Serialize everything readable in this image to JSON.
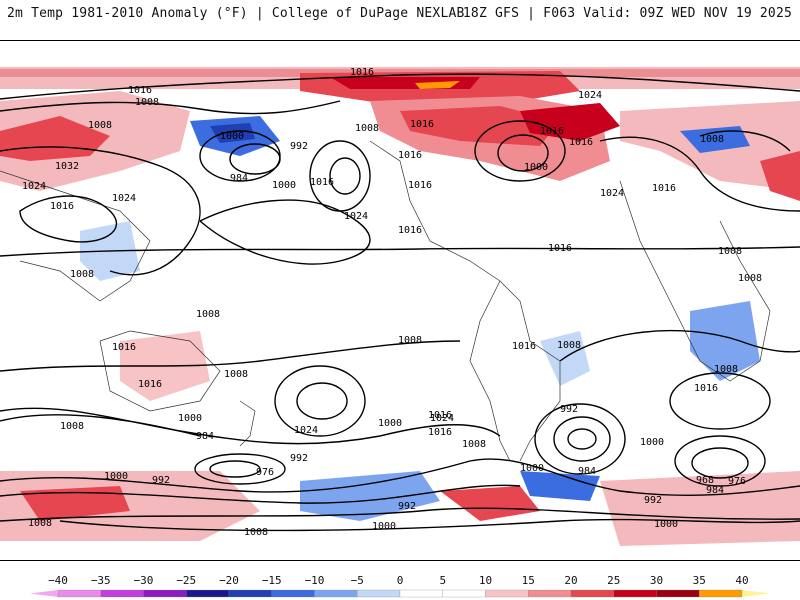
{
  "header": {
    "title": "2m Temp 1981-2010 Anomaly (°F) | College of DuPage NEXLAB",
    "run": "18Z GFS | F063 Valid: 09Z WED NOV 19 2025"
  },
  "map": {
    "contour_labels": [
      "1016",
      "1008",
      "1016",
      "1008",
      "1032",
      "1024",
      "1016",
      "1024",
      "1008",
      "1000",
      "984",
      "992",
      "1000",
      "1016",
      "1024",
      "1008",
      "1016",
      "1016",
      "1016",
      "1016",
      "1016",
      "1000",
      "1024",
      "1016",
      "1024",
      "1016",
      "1016",
      "1008",
      "1008",
      "1008",
      "1008",
      "1016",
      "1016",
      "1008",
      "1008",
      "1016",
      "1008",
      "1008",
      "1016",
      "1000",
      "1024",
      "1016",
      "1016",
      "1008",
      "1000",
      "984",
      "992",
      "976",
      "1000",
      "992",
      "1024",
      "1000",
      "984",
      "992",
      "1008",
      "992",
      "976",
      "968",
      "984",
      "992",
      "1000",
      "1008",
      "1000",
      "1008",
      "1000"
    ],
    "colors": {
      "land": "#ffffff",
      "contour": "#000000",
      "coast": "#333333"
    }
  },
  "colorbar": {
    "ticks": [
      "−40",
      "−35",
      "−30",
      "−25",
      "−20",
      "−15",
      "−10",
      "−5",
      "0",
      "5",
      "10",
      "15",
      "20",
      "25",
      "30",
      "35",
      "40"
    ],
    "colors": [
      "#e98be8",
      "#c33ee0",
      "#8f1bc0",
      "#1a1a8c",
      "#1f3fb3",
      "#3b6de0",
      "#7da5ef",
      "#c3d7f7",
      "#ffffff",
      "#ffffff",
      "#f7c3c5",
      "#f08d92",
      "#e8464f",
      "#c7001d",
      "#9a0012",
      "#ff9b00",
      "#ffdd33"
    ],
    "end_left": "#f0a9ee",
    "end_right": "#fff39a"
  }
}
